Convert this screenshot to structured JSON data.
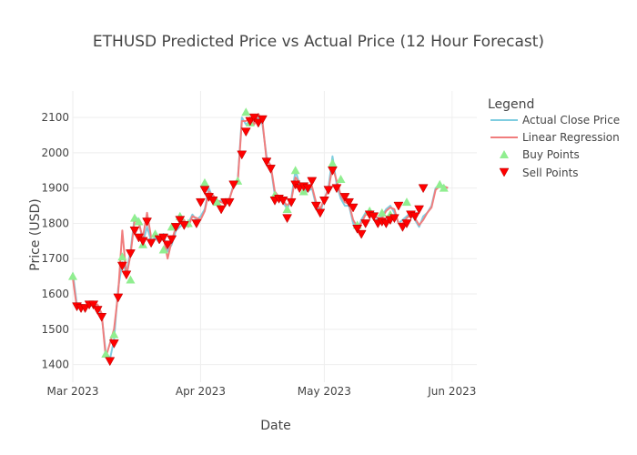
{
  "chart_data": {
    "type": "line",
    "title": "ETHUSD Predicted Price vs Actual Price (12 Hour Forecast)",
    "xlabel": "Date",
    "ylabel": "Price (USD)",
    "xlim": [
      "2023-02-29",
      "2023-06-07"
    ],
    "ylim": [
      1350,
      2175
    ],
    "x_ticks": [
      {
        "date": "2023-03-01",
        "label": "Mar 2023"
      },
      {
        "date": "2023-04-01",
        "label": "Apr 2023"
      },
      {
        "date": "2023-05-01",
        "label": "May 2023"
      },
      {
        "date": "2023-06-01",
        "label": "Jun 2023"
      }
    ],
    "y_ticks": [
      1400,
      1500,
      1600,
      1700,
      1800,
      1900,
      2000,
      2100
    ],
    "grid": true,
    "legend": {
      "title": "Legend",
      "position": "top-right",
      "entries": [
        {
          "label": "Actual Close Price",
          "color": "#7fcde0",
          "kind": "line"
        },
        {
          "label": "Linear Regression",
          "color": "#f07d7d",
          "kind": "line"
        },
        {
          "label": "Buy Points",
          "color": "#90ee90",
          "kind": "triangle-up"
        },
        {
          "label": "Sell Points",
          "color": "#ff0000",
          "kind": "triangle-down"
        }
      ]
    },
    "colors": {
      "actual": "#7fcde0",
      "regression": "#f07d7d",
      "buy": "#90ee90",
      "sell": "#ff0000",
      "sell_outline": "#b00000"
    },
    "series": [
      {
        "name": "Actual Close Price",
        "x": [
          "2023-03-01",
          "2023-03-02",
          "2023-03-03",
          "2023-03-04",
          "2023-03-05",
          "2023-03-06",
          "2023-03-07",
          "2023-03-08",
          "2023-03-09",
          "2023-03-10",
          "2023-03-11",
          "2023-03-12",
          "2023-03-13",
          "2023-03-14",
          "2023-03-15",
          "2023-03-16",
          "2023-03-17",
          "2023-03-18",
          "2023-03-19",
          "2023-03-20",
          "2023-03-21",
          "2023-03-22",
          "2023-03-23",
          "2023-03-24",
          "2023-03-25",
          "2023-03-26",
          "2023-03-27",
          "2023-03-28",
          "2023-03-29",
          "2023-03-30",
          "2023-03-31",
          "2023-04-01",
          "2023-04-02",
          "2023-04-03",
          "2023-04-04",
          "2023-04-05",
          "2023-04-06",
          "2023-04-07",
          "2023-04-08",
          "2023-04-09",
          "2023-04-10",
          "2023-04-11",
          "2023-04-12",
          "2023-04-13",
          "2023-04-14",
          "2023-04-15",
          "2023-04-16",
          "2023-04-17",
          "2023-04-18",
          "2023-04-19",
          "2023-04-20",
          "2023-04-21",
          "2023-04-22",
          "2023-04-23",
          "2023-04-24",
          "2023-04-25",
          "2023-04-26",
          "2023-04-27",
          "2023-04-28",
          "2023-04-29",
          "2023-04-30",
          "2023-05-01",
          "2023-05-02",
          "2023-05-03",
          "2023-05-04",
          "2023-05-05",
          "2023-05-06",
          "2023-05-07",
          "2023-05-08",
          "2023-05-09",
          "2023-05-10",
          "2023-05-11",
          "2023-05-12",
          "2023-05-13",
          "2023-05-14",
          "2023-05-15",
          "2023-05-16",
          "2023-05-17",
          "2023-05-18",
          "2023-05-19",
          "2023-05-20",
          "2023-05-21",
          "2023-05-22",
          "2023-05-23",
          "2023-05-24",
          "2023-05-25",
          "2023-05-26",
          "2023-05-27",
          "2023-05-28",
          "2023-05-29",
          "2023-05-30",
          "2023-05-31"
        ],
        "values": [
          1660,
          1570,
          1565,
          1560,
          1565,
          1575,
          1560,
          1540,
          1435,
          1415,
          1470,
          1615,
          1690,
          1660,
          1720,
          1820,
          1810,
          1745,
          1790,
          1750,
          1760,
          1745,
          1770,
          1720,
          1740,
          1780,
          1790,
          1800,
          1800,
          1825,
          1810,
          1820,
          1840,
          1900,
          1870,
          1860,
          1865,
          1860,
          1870,
          1910,
          1920,
          2100,
          2080,
          2090,
          2095,
          2100,
          2080,
          1990,
          1960,
          1880,
          1870,
          1860,
          1840,
          1870,
          1950,
          1910,
          1900,
          1890,
          1900,
          1850,
          1830,
          1870,
          1900,
          1990,
          1910,
          1870,
          1850,
          1850,
          1800,
          1780,
          1810,
          1830,
          1820,
          1830,
          1810,
          1820,
          1840,
          1850,
          1830,
          1800,
          1810,
          1820,
          1830,
          1810,
          1790,
          1820,
          1830,
          1850,
          1900,
          1910,
          1905,
          1900
        ]
      },
      {
        "name": "Linear Regression",
        "x": [
          "2023-03-01",
          "2023-03-02",
          "2023-03-03",
          "2023-03-04",
          "2023-03-05",
          "2023-03-06",
          "2023-03-07",
          "2023-03-08",
          "2023-03-09",
          "2023-03-10",
          "2023-03-11",
          "2023-03-12",
          "2023-03-13",
          "2023-03-14",
          "2023-03-15",
          "2023-03-16",
          "2023-03-17",
          "2023-03-18",
          "2023-03-19",
          "2023-03-20",
          "2023-03-21",
          "2023-03-22",
          "2023-03-23",
          "2023-03-24",
          "2023-03-25",
          "2023-03-26",
          "2023-03-27",
          "2023-03-28",
          "2023-03-29",
          "2023-03-30",
          "2023-03-31",
          "2023-04-01",
          "2023-04-02",
          "2023-04-03",
          "2023-04-04",
          "2023-04-05",
          "2023-04-06",
          "2023-04-07",
          "2023-04-08",
          "2023-04-09",
          "2023-04-10",
          "2023-04-11",
          "2023-04-12",
          "2023-04-13",
          "2023-04-14",
          "2023-04-15",
          "2023-04-16",
          "2023-04-17",
          "2023-04-18",
          "2023-04-19",
          "2023-04-20",
          "2023-04-21",
          "2023-04-22",
          "2023-04-23",
          "2023-04-24",
          "2023-04-25",
          "2023-04-26",
          "2023-04-27",
          "2023-04-28",
          "2023-04-29",
          "2023-04-30",
          "2023-05-01",
          "2023-05-02",
          "2023-05-03",
          "2023-05-04",
          "2023-05-05",
          "2023-05-06",
          "2023-05-07",
          "2023-05-08",
          "2023-05-09",
          "2023-05-10",
          "2023-05-11",
          "2023-05-12",
          "2023-05-13",
          "2023-05-14",
          "2023-05-15",
          "2023-05-16",
          "2023-05-17",
          "2023-05-18",
          "2023-05-19",
          "2023-05-20",
          "2023-05-21",
          "2023-05-22",
          "2023-05-23",
          "2023-05-24",
          "2023-05-25",
          "2023-05-26",
          "2023-05-27",
          "2023-05-28",
          "2023-05-29",
          "2023-05-30",
          "2023-05-31"
        ],
        "values": [
          1645,
          1560,
          1570,
          1565,
          1570,
          1565,
          1570,
          1545,
          1420,
          1460,
          1500,
          1600,
          1780,
          1650,
          1710,
          1810,
          1800,
          1760,
          1830,
          1760,
          1770,
          1745,
          1760,
          1700,
          1750,
          1790,
          1800,
          1810,
          1790,
          1820,
          1815,
          1810,
          1835,
          1890,
          1880,
          1865,
          1860,
          1855,
          1870,
          1905,
          1915,
          2090,
          2090,
          2100,
          2080,
          2110,
          2090,
          1980,
          1965,
          1890,
          1875,
          1865,
          1850,
          1865,
          1930,
          1915,
          1905,
          1895,
          1905,
          1860,
          1840,
          1870,
          1895,
          1960,
          1920,
          1880,
          1860,
          1855,
          1810,
          1790,
          1800,
          1825,
          1825,
          1825,
          1815,
          1815,
          1835,
          1845,
          1840,
          1800,
          1800,
          1815,
          1825,
          1815,
          1795,
          1810,
          1830,
          1845,
          1895,
          1905,
          1905,
          1900
        ]
      }
    ],
    "buy_points": [
      {
        "x": "2023-03-01",
        "y": 1650
      },
      {
        "x": "2023-03-09",
        "y": 1430
      },
      {
        "x": "2023-03-11",
        "y": 1485
      },
      {
        "x": "2023-03-13",
        "y": 1705
      },
      {
        "x": "2023-03-15",
        "y": 1640
      },
      {
        "x": "2023-03-16",
        "y": 1815
      },
      {
        "x": "2023-03-17",
        "y": 1805
      },
      {
        "x": "2023-03-18",
        "y": 1740
      },
      {
        "x": "2023-03-21",
        "y": 1770
      },
      {
        "x": "2023-03-23",
        "y": 1725
      },
      {
        "x": "2023-03-25",
        "y": 1790
      },
      {
        "x": "2023-03-27",
        "y": 1820
      },
      {
        "x": "2023-03-29",
        "y": 1800
      },
      {
        "x": "2023-04-02",
        "y": 1915
      },
      {
        "x": "2023-04-05",
        "y": 1860
      },
      {
        "x": "2023-04-10",
        "y": 1920
      },
      {
        "x": "2023-04-12",
        "y": 2115
      },
      {
        "x": "2023-04-13",
        "y": 2085
      },
      {
        "x": "2023-04-19",
        "y": 1880
      },
      {
        "x": "2023-04-22",
        "y": 1840
      },
      {
        "x": "2023-04-24",
        "y": 1950
      },
      {
        "x": "2023-04-26",
        "y": 1890
      },
      {
        "x": "2023-05-03",
        "y": 1970
      },
      {
        "x": "2023-05-05",
        "y": 1925
      },
      {
        "x": "2023-05-09",
        "y": 1795
      },
      {
        "x": "2023-05-12",
        "y": 1835
      },
      {
        "x": "2023-05-15",
        "y": 1830
      },
      {
        "x": "2023-05-17",
        "y": 1825
      },
      {
        "x": "2023-05-21",
        "y": 1860
      },
      {
        "x": "2023-05-29",
        "y": 1910
      },
      {
        "x": "2023-05-30",
        "y": 1900
      }
    ],
    "sell_points": [
      {
        "x": "2023-03-02",
        "y": 1565
      },
      {
        "x": "2023-03-03",
        "y": 1560
      },
      {
        "x": "2023-03-04",
        "y": 1560
      },
      {
        "x": "2023-03-05",
        "y": 1570
      },
      {
        "x": "2023-03-06",
        "y": 1570
      },
      {
        "x": "2023-03-07",
        "y": 1555
      },
      {
        "x": "2023-03-08",
        "y": 1535
      },
      {
        "x": "2023-03-10",
        "y": 1410
      },
      {
        "x": "2023-03-11",
        "y": 1460
      },
      {
        "x": "2023-03-12",
        "y": 1590
      },
      {
        "x": "2023-03-13",
        "y": 1680
      },
      {
        "x": "2023-03-14",
        "y": 1655
      },
      {
        "x": "2023-03-15",
        "y": 1715
      },
      {
        "x": "2023-03-16",
        "y": 1780
      },
      {
        "x": "2023-03-17",
        "y": 1760
      },
      {
        "x": "2023-03-18",
        "y": 1750
      },
      {
        "x": "2023-03-19",
        "y": 1805
      },
      {
        "x": "2023-03-20",
        "y": 1745
      },
      {
        "x": "2023-03-22",
        "y": 1755
      },
      {
        "x": "2023-03-23",
        "y": 1760
      },
      {
        "x": "2023-03-24",
        "y": 1740
      },
      {
        "x": "2023-03-25",
        "y": 1755
      },
      {
        "x": "2023-03-26",
        "y": 1790
      },
      {
        "x": "2023-03-27",
        "y": 1810
      },
      {
        "x": "2023-03-28",
        "y": 1795
      },
      {
        "x": "2023-03-31",
        "y": 1800
      },
      {
        "x": "2023-04-01",
        "y": 1860
      },
      {
        "x": "2023-04-02",
        "y": 1895
      },
      {
        "x": "2023-04-03",
        "y": 1875
      },
      {
        "x": "2023-04-04",
        "y": 1865
      },
      {
        "x": "2023-04-06",
        "y": 1840
      },
      {
        "x": "2023-04-07",
        "y": 1860
      },
      {
        "x": "2023-04-08",
        "y": 1860
      },
      {
        "x": "2023-04-09",
        "y": 1910
      },
      {
        "x": "2023-04-11",
        "y": 1995
      },
      {
        "x": "2023-04-12",
        "y": 2060
      },
      {
        "x": "2023-04-13",
        "y": 2090
      },
      {
        "x": "2023-04-14",
        "y": 2100
      },
      {
        "x": "2023-04-15",
        "y": 2085
      },
      {
        "x": "2023-04-16",
        "y": 2095
      },
      {
        "x": "2023-04-17",
        "y": 1975
      },
      {
        "x": "2023-04-18",
        "y": 1955
      },
      {
        "x": "2023-04-19",
        "y": 1865
      },
      {
        "x": "2023-04-20",
        "y": 1870
      },
      {
        "x": "2023-04-21",
        "y": 1865
      },
      {
        "x": "2023-04-22",
        "y": 1815
      },
      {
        "x": "2023-04-23",
        "y": 1860
      },
      {
        "x": "2023-04-24",
        "y": 1910
      },
      {
        "x": "2023-04-25",
        "y": 1900
      },
      {
        "x": "2023-04-26",
        "y": 1905
      },
      {
        "x": "2023-04-27",
        "y": 1900
      },
      {
        "x": "2023-04-28",
        "y": 1920
      },
      {
        "x": "2023-04-29",
        "y": 1850
      },
      {
        "x": "2023-04-30",
        "y": 1830
      },
      {
        "x": "2023-05-01",
        "y": 1865
      },
      {
        "x": "2023-05-02",
        "y": 1895
      },
      {
        "x": "2023-05-03",
        "y": 1950
      },
      {
        "x": "2023-05-04",
        "y": 1900
      },
      {
        "x": "2023-05-06",
        "y": 1875
      },
      {
        "x": "2023-05-07",
        "y": 1860
      },
      {
        "x": "2023-05-08",
        "y": 1845
      },
      {
        "x": "2023-05-09",
        "y": 1785
      },
      {
        "x": "2023-05-10",
        "y": 1770
      },
      {
        "x": "2023-05-11",
        "y": 1800
      },
      {
        "x": "2023-05-12",
        "y": 1825
      },
      {
        "x": "2023-05-13",
        "y": 1820
      },
      {
        "x": "2023-05-14",
        "y": 1800
      },
      {
        "x": "2023-05-15",
        "y": 1805
      },
      {
        "x": "2023-05-16",
        "y": 1800
      },
      {
        "x": "2023-05-17",
        "y": 1810
      },
      {
        "x": "2023-05-18",
        "y": 1815
      },
      {
        "x": "2023-05-19",
        "y": 1850
      },
      {
        "x": "2023-05-20",
        "y": 1790
      },
      {
        "x": "2023-05-21",
        "y": 1800
      },
      {
        "x": "2023-05-22",
        "y": 1825
      },
      {
        "x": "2023-05-23",
        "y": 1820
      },
      {
        "x": "2023-05-24",
        "y": 1840
      },
      {
        "x": "2023-05-25",
        "y": 1900
      }
    ]
  }
}
